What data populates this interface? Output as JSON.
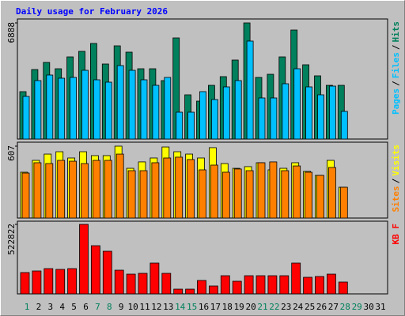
{
  "chart_data": {
    "type": "bar",
    "title": "Daily usage for February 2026",
    "categories": [
      "1",
      "2",
      "3",
      "4",
      "5",
      "6",
      "7",
      "8",
      "9",
      "10",
      "11",
      "12",
      "13",
      "14",
      "15",
      "16",
      "17",
      "18",
      "19",
      "20",
      "21",
      "22",
      "23",
      "24",
      "25",
      "26",
      "27",
      "28",
      "29",
      "30",
      "31"
    ],
    "category_colors": [
      "#00805c",
      "#000000",
      "#000000",
      "#000000",
      "#000000",
      "#000000",
      "#00805c",
      "#00805c",
      "#000000",
      "#000000",
      "#000000",
      "#000000",
      "#000000",
      "#00805c",
      "#00805c",
      "#000000",
      "#000000",
      "#000000",
      "#000000",
      "#000000",
      "#00805c",
      "#00805c",
      "#000000",
      "#000000",
      "#000000",
      "#000000",
      "#000000",
      "#00805c",
      "#00805c",
      "#000000",
      "#000000"
    ],
    "separator": "/",
    "panels": [
      {
        "ylim": [
          0,
          6888
        ],
        "yticks": [
          6888
        ],
        "extra_label": "Pages",
        "extra_label_color": "#00c0ff",
        "series": [
          {
            "name": "Hits",
            "color": "#00805c",
            "values": [
              2811,
              4123,
              4545,
              4170,
              4873,
              5201,
              5670,
              4451,
              5529,
              5154,
              4170,
              4170,
              3467,
              5998,
              2624,
              2249,
              3186,
              3702,
              4686,
              6888,
              3655,
              3842,
              4873,
              6466,
              4405,
              3749,
              3186,
              3186,
              null,
              null,
              null
            ]
          },
          {
            "name": "Files",
            "color": "#00c0ff",
            "values": [
              2530,
              3468,
              3796,
              3608,
              3655,
              4077,
              3514,
              3374,
              4358,
              4077,
              3514,
              3186,
              3655,
              1593,
              1593,
              2812,
              2343,
              3093,
              3468,
              5811,
              2437,
              2437,
              3280,
              4170,
              3093,
              2624,
              3140,
              1640,
              null,
              null,
              null
            ]
          }
        ]
      },
      {
        "ylim": [
          0,
          607
        ],
        "yticks": [
          607
        ],
        "series": [
          {
            "name": "Visits",
            "color": "#ffff00",
            "values": [
              387,
              487,
              540,
              560,
              507,
              560,
              527,
              527,
              607,
              420,
              474,
              507,
              600,
              560,
              540,
              507,
              594,
              460,
              420,
              434,
              467,
              407,
              420,
              467,
              394,
              360,
              487,
              260,
              null,
              null,
              null
            ]
          },
          {
            "name": "Sites",
            "color": "#ff8000",
            "values": [
              380,
              467,
              460,
              487,
              480,
              460,
              487,
              487,
              540,
              400,
              400,
              467,
              507,
              514,
              494,
              407,
              447,
              387,
              414,
              400,
              467,
              474,
              400,
              440,
              387,
              360,
              427,
              260,
              null,
              null,
              null
            ]
          }
        ]
      },
      {
        "ylim": [
          0,
          522822
        ],
        "yticks": [
          522822
        ],
        "series": [
          {
            "name": "KB F",
            "color": "#ff0000",
            "values": [
              160400,
              172300,
              190100,
              184200,
              190100,
              522822,
              362400,
              320800,
              178200,
              148500,
              154500,
              231700,
              154500,
              35600,
              35600,
              101000,
              59400,
              136600,
              95100,
              136600,
              136600,
              136600,
              136600,
              231700,
              124800,
              130700,
              148500,
              89100,
              null,
              null,
              null
            ]
          }
        ]
      }
    ]
  }
}
